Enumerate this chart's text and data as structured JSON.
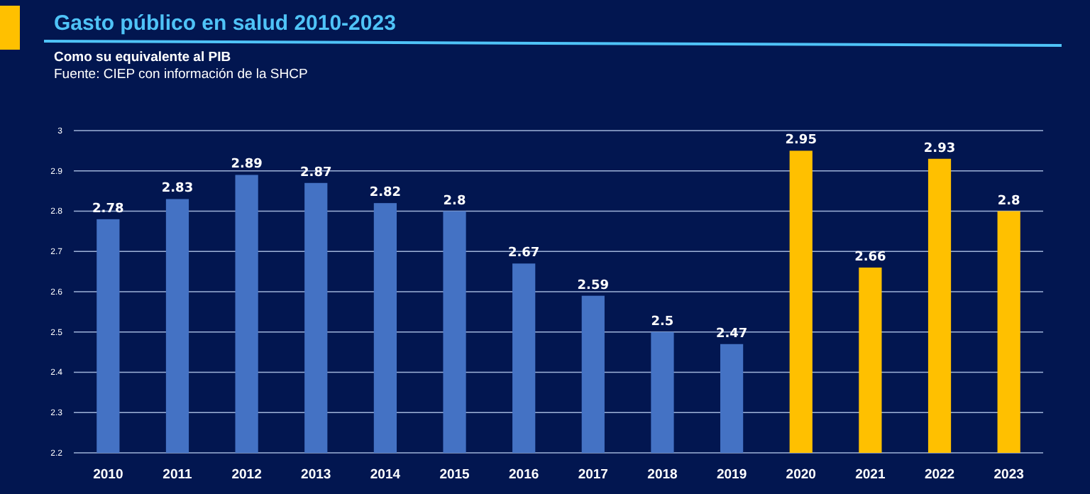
{
  "chart_data": {
    "type": "bar",
    "title": "Gasto público en salud 2010-2023",
    "subtitle": "Como su equivalente al PIB",
    "annotations": [
      "Fuente: CIEP con información de la SHCP"
    ],
    "categories": [
      "2010",
      "2011",
      "2012",
      "2013",
      "2014",
      "2015",
      "2016",
      "2017",
      "2018",
      "2019",
      "2020",
      "2021",
      "2022",
      "2023"
    ],
    "values": [
      2.78,
      2.83,
      2.89,
      2.87,
      2.82,
      2.8,
      2.67,
      2.59,
      2.5,
      2.47,
      2.95,
      2.66,
      2.93,
      2.8
    ],
    "colors": [
      "#4472c4",
      "#4472c4",
      "#4472c4",
      "#4472c4",
      "#4472c4",
      "#4472c4",
      "#4472c4",
      "#4472c4",
      "#4472c4",
      "#4472c4",
      "#ffc000",
      "#ffc000",
      "#ffc000",
      "#ffc000"
    ],
    "ylim": [
      2.2,
      3
    ],
    "yticks": [
      2.2,
      2.3,
      2.4,
      2.5,
      2.6,
      2.7,
      2.8,
      2.9,
      3
    ],
    "grid": "y",
    "data_labels": true
  }
}
